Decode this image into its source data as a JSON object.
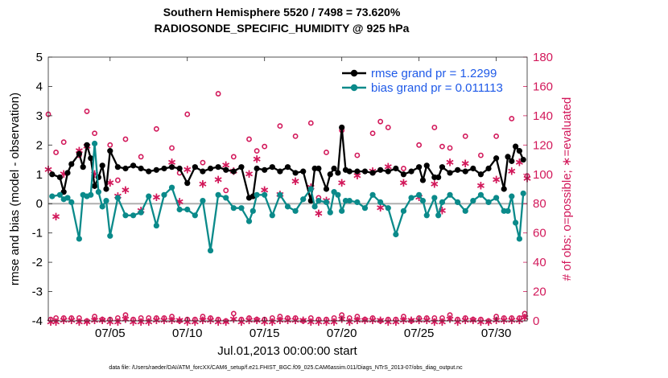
{
  "chart_data": {
    "type": "line",
    "title": "Southern Hemisphere 5520 / 7498 = 73.620%",
    "subtitle": "RADIOSONDE_SPECIFIC_HUMIDITY @ 925 hPa",
    "xlabel": "Jul.01,2013 00:00:00 start",
    "ylabel": "rmse and bias (model - observation)",
    "y2label": "# of obs: o=possible; ∗=evaluated",
    "xlim": [
      1,
      32
    ],
    "ylim": [
      -4,
      5
    ],
    "y2lim": [
      0,
      180
    ],
    "x_ticks": [
      5,
      10,
      15,
      20,
      25,
      30
    ],
    "x_tick_labels": [
      "07/05",
      "07/10",
      "07/15",
      "07/20",
      "07/25",
      "07/30"
    ],
    "y_ticks": [
      -4,
      -3,
      -2,
      -1,
      0,
      1,
      2,
      3,
      4,
      5
    ],
    "y_tick_labels": [
      "-4",
      "-3",
      "-2",
      "-1",
      "0",
      "1",
      "2",
      "3",
      "4",
      "5"
    ],
    "y2_ticks": [
      0,
      20,
      40,
      60,
      80,
      100,
      120,
      140,
      160,
      180
    ],
    "y2_tick_labels": [
      "0",
      "20",
      "40",
      "60",
      "80",
      "100",
      "120",
      "140",
      "160",
      "180"
    ],
    "zero_line": 0,
    "x": [
      1.25,
      1.75,
      2.0,
      2.25,
      2.5,
      3.0,
      3.25,
      3.5,
      3.75,
      4.0,
      4.25,
      4.5,
      4.75,
      5.0,
      5.5,
      6.0,
      6.5,
      7.0,
      7.5,
      8.0,
      8.5,
      9.0,
      9.5,
      10.0,
      10.5,
      11.0,
      11.5,
      12.0,
      12.5,
      13.0,
      13.5,
      14.0,
      14.25,
      14.5,
      15.0,
      15.5,
      16.0,
      16.5,
      17.0,
      17.5,
      18.0,
      18.25,
      18.5,
      19.0,
      19.25,
      19.5,
      19.75,
      20.0,
      20.25,
      20.5,
      21.0,
      21.5,
      22.0,
      22.5,
      23.0,
      23.5,
      24.0,
      24.5,
      25.0,
      25.25,
      25.5,
      26.0,
      26.25,
      26.5,
      27.0,
      27.5,
      28.0,
      28.5,
      29.0,
      29.5,
      30.0,
      30.5,
      30.75,
      31.0,
      31.25,
      31.5,
      31.75
    ],
    "series": [
      {
        "name": "rmse grand pr = 1.2299",
        "color": "#000000",
        "values": [
          1.0,
          0.9,
          0.4,
          1.05,
          1.35,
          1.7,
          1.25,
          2.0,
          1.55,
          0.6,
          0.9,
          1.3,
          0.5,
          1.8,
          1.25,
          1.2,
          1.3,
          1.2,
          1.1,
          1.15,
          1.2,
          1.25,
          1.2,
          0.7,
          1.25,
          1.1,
          1.2,
          1.25,
          1.15,
          1.1,
          1.25,
          0.2,
          0.25,
          1.2,
          1.15,
          1.25,
          1.1,
          1.25,
          1.05,
          1.1,
          0.1,
          1.2,
          1.2,
          0.5,
          1.0,
          1.2,
          1.05,
          2.6,
          1.15,
          1.1,
          1.1,
          1.1,
          1.05,
          1.15,
          1.1,
          1.2,
          1.0,
          1.1,
          1.25,
          0.8,
          1.3,
          0.9,
          0.9,
          1.25,
          1.05,
          1.15,
          1.1,
          1.2,
          1.0,
          1.2,
          1.55,
          0.5,
          1.6,
          1.45,
          1.95,
          1.8,
          1.5
        ]
      },
      {
        "name": "bias grand pr = 0.011113",
        "color": "#0a8a8a",
        "values": [
          0.25,
          0.3,
          0.15,
          0.2,
          0.05,
          -1.2,
          0.3,
          0.25,
          0.3,
          2.05,
          0.4,
          -0.1,
          0.1,
          -1.1,
          0.2,
          -0.4,
          -0.4,
          -0.3,
          0.25,
          -0.75,
          0.3,
          0.55,
          -0.2,
          -0.2,
          -0.4,
          0.1,
          -1.6,
          0.3,
          0.2,
          -0.15,
          -0.15,
          -0.6,
          -0.25,
          0.3,
          0.3,
          -0.4,
          0.3,
          -0.1,
          -0.25,
          0.15,
          0.5,
          -0.1,
          0.1,
          0.05,
          -0.3,
          0.4,
          0.3,
          -0.25,
          0.1,
          0.1,
          0.05,
          -0.15,
          0.3,
          0.05,
          -0.15,
          -1.05,
          -0.25,
          0.2,
          0.3,
          0.1,
          -0.4,
          0.2,
          -0.4,
          0.05,
          0.3,
          0.05,
          -0.25,
          0.1,
          0.3,
          0.05,
          0.2,
          -0.25,
          -0.25,
          0.25,
          -0.65,
          -1.2,
          0.35
        ]
      }
    ],
    "obs_possible": {
      "name": "possible (o)",
      "color": "#d2185a",
      "x": [
        1,
        2,
        3,
        4,
        5,
        6,
        7,
        8,
        9,
        10,
        11,
        12,
        13,
        14,
        15,
        16,
        17,
        18,
        19,
        20,
        21,
        22,
        23,
        24,
        25,
        26,
        27,
        28,
        29,
        30,
        31,
        32,
        1.5,
        3.5,
        5.5,
        9.5,
        12.5,
        14.5,
        18.5,
        22.5,
        26.5,
        31.5
      ],
      "values": [
        141,
        122,
        113,
        128,
        120,
        124,
        112,
        131,
        118,
        141,
        108,
        155,
        112,
        124,
        119,
        133,
        126,
        135,
        115,
        130,
        113,
        128,
        132,
        104,
        120,
        132,
        118,
        126,
        113,
        126,
        138,
        99,
        115,
        143,
        96,
        101,
        89,
        116,
        84,
        136,
        119,
        157
      ]
    },
    "obs_evaluated": {
      "name": "evaluated (∗)",
      "color": "#d2185a",
      "x": [
        1,
        2,
        3,
        4,
        5,
        6,
        7,
        8,
        9,
        10,
        11,
        12,
        13,
        14,
        15,
        16,
        17,
        18,
        19,
        20,
        21,
        22,
        23,
        24,
        25,
        26,
        27,
        28,
        29,
        30,
        31,
        32,
        1.5,
        3.5,
        5.5,
        9.5,
        12.5,
        14.5,
        18.5,
        22.5,
        26.5,
        31.5
      ],
      "values": [
        104,
        101,
        117,
        101,
        95,
        90,
        76,
        85,
        109,
        104,
        94,
        97,
        103,
        101,
        90,
        87,
        96,
        92,
        83,
        95,
        100,
        103,
        106,
        95,
        85,
        94,
        109,
        108,
        93,
        97,
        103,
        98,
        72,
        120,
        86,
        82,
        107,
        111,
        74,
        78,
        76,
        109
      ]
    },
    "obs_bottom_possible": [
      1,
      2,
      2,
      3,
      1,
      4,
      2,
      2,
      3,
      1,
      3,
      1,
      5,
      2,
      1,
      3,
      2,
      2,
      1,
      4,
      3,
      2,
      1,
      3,
      2,
      2,
      4,
      2,
      1,
      3,
      2,
      5
    ],
    "obs_bottom_evaluated": [
      0,
      1,
      0,
      1,
      0,
      2,
      0,
      1,
      1,
      0,
      1,
      0,
      2,
      1,
      0,
      1,
      1,
      0,
      0,
      2,
      1,
      1,
      0,
      1,
      1,
      0,
      2,
      1,
      0,
      1,
      1,
      3
    ]
  },
  "legend": {
    "rmse_label": "rmse grand pr = 1.2299",
    "bias_label": "bias grand pr = 0.011113",
    "text_color": "#1f5ae8"
  },
  "footer": "data file: /Users/raeder/DAI/ATM_forcXX/CAM6_setup/f.e21.FHIST_BGC.f09_025.CAM6assim.011/Diags_NTrS_2013-07/obs_diag_output.nc"
}
